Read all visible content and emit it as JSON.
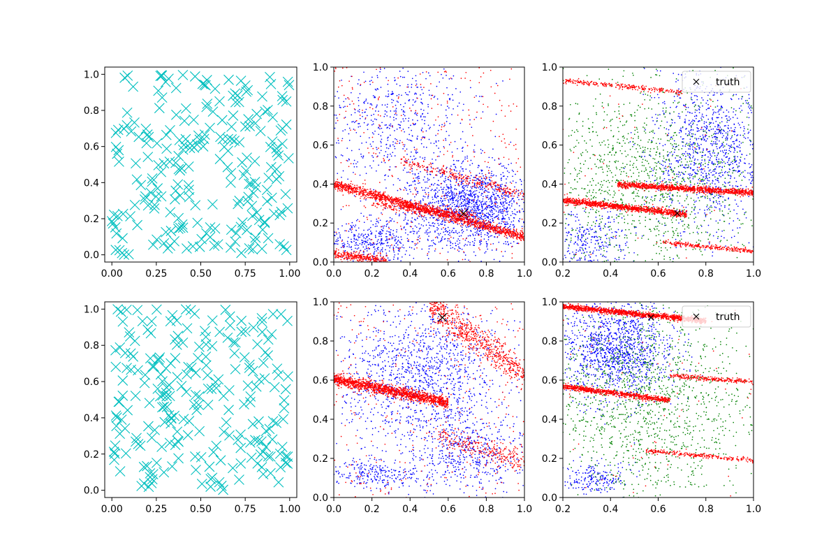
{
  "chart_data": [
    {
      "panel": "top-left",
      "type": "scatter",
      "xlim": [
        -0.04,
        1.04
      ],
      "ylim": [
        -0.04,
        1.04
      ],
      "xticks": [
        "0.00",
        "0.25",
        "0.50",
        "0.75",
        "1.00"
      ],
      "yticks": [
        "0.0",
        "0.2",
        "0.4",
        "0.6",
        "0.8",
        "1.0"
      ],
      "series": [
        {
          "marker": "x",
          "color": "#00bfbf",
          "count": 240,
          "distribution": "uniform in [0,1]x[0,1] with a gap near (0.55, 0.40)",
          "seed": 11
        }
      ]
    },
    {
      "panel": "top-middle",
      "type": "scatter",
      "xlim": [
        0,
        1
      ],
      "ylim": [
        0,
        1
      ],
      "xticks": [
        "0.0",
        "0.2",
        "0.4",
        "0.6",
        "0.8",
        "1.0"
      ],
      "yticks": [
        "0.0",
        "0.2",
        "0.4",
        "0.6",
        "0.8",
        "1.0"
      ],
      "series": [
        {
          "marker": "dot",
          "color": "#0000ff",
          "seed": 21,
          "clusters": [
            {
              "cx": 0.72,
              "cy": 0.28,
              "sx": 0.17,
              "sy": 0.11,
              "count": 1600
            },
            {
              "cx": 0.32,
              "cy": 0.72,
              "sx": 0.2,
              "sy": 0.18,
              "count": 600
            },
            {
              "cx": 0.2,
              "cy": 0.1,
              "sx": 0.14,
              "sy": 0.06,
              "count": 400
            }
          ]
        },
        {
          "marker": "dot",
          "color": "#ff0000",
          "seed": 22,
          "bands": [
            {
              "x0": 0.0,
              "x1": 1.0,
              "y_at_0": 0.4,
              "slope": -0.27,
              "spread": 0.012,
              "count": 1500,
              "x_from": 0.38
            },
            {
              "x0": 0.2,
              "x1": 0.75,
              "y_at_0": 0.32,
              "slope": -0.11,
              "spread": 0.012,
              "count": 300
            },
            {
              "x0": 0.35,
              "x1": 1.0,
              "y_at_0": 0.62,
              "slope": -0.28,
              "spread": 0.014,
              "count": 260
            },
            {
              "x0": 0.0,
              "x1": 0.28,
              "y_at_0": 0.04,
              "slope": -0.12,
              "spread": 0.012,
              "count": 300
            }
          ],
          "background": 350
        }
      ],
      "truth": {
        "x": 0.68,
        "y": 0.25
      }
    },
    {
      "panel": "top-right",
      "type": "scatter",
      "xlim": [
        0.2,
        1
      ],
      "ylim": [
        0,
        1
      ],
      "xticks": [
        "0.2",
        "0.4",
        "0.6",
        "0.8",
        "1.0"
      ],
      "yticks": [
        "0.0",
        "0.2",
        "0.4",
        "0.6",
        "0.8",
        "1.0"
      ],
      "series": [
        {
          "marker": "dot",
          "color": "#0000ff",
          "seed": 31,
          "clusters": [
            {
              "cx": 0.82,
              "cy": 0.58,
              "sx": 0.12,
              "sy": 0.2,
              "count": 1100
            },
            {
              "cx": 0.3,
              "cy": 0.1,
              "sx": 0.08,
              "sy": 0.08,
              "count": 300
            }
          ]
        },
        {
          "marker": "dot",
          "color": "#008000",
          "seed": 32,
          "clusters": [
            {
              "cx": 0.55,
              "cy": 0.42,
              "sx": 0.25,
              "sy": 0.27,
              "count": 1400
            }
          ]
        },
        {
          "marker": "dot",
          "color": "#ff0000",
          "seed": 33,
          "bands": [
            {
              "x0": 0.2,
              "x1": 0.72,
              "y_at_0": 0.345,
              "slope": -0.14,
              "spread": 0.008,
              "count": 1100
            },
            {
              "x0": 0.43,
              "x1": 1.0,
              "y_at_0": 0.43,
              "slope": -0.075,
              "spread": 0.008,
              "count": 1100
            },
            {
              "x0": 0.2,
              "x1": 0.7,
              "y_at_0": 0.955,
              "slope": -0.12,
              "spread": 0.006,
              "count": 250
            },
            {
              "x0": 0.62,
              "x1": 1.0,
              "y_at_0": 0.175,
              "slope": -0.12,
              "spread": 0.006,
              "count": 250
            }
          ],
          "background": 60
        }
      ],
      "truth": {
        "x": 0.68,
        "y": 0.25
      },
      "legend": {
        "label": "truth",
        "placement": "upper right"
      }
    },
    {
      "panel": "bottom-left",
      "type": "scatter",
      "xlim": [
        -0.04,
        1.04
      ],
      "ylim": [
        -0.04,
        1.04
      ],
      "xticks": [
        "0.00",
        "0.25",
        "0.50",
        "0.75",
        "1.00"
      ],
      "yticks": [
        "0.0",
        "0.2",
        "0.4",
        "0.6",
        "0.8",
        "1.0"
      ],
      "series": [
        {
          "marker": "x",
          "color": "#00bfbf",
          "count": 240,
          "distribution": "uniform in [0,1]x[0,1]",
          "seed": 41
        }
      ]
    },
    {
      "panel": "bottom-middle",
      "type": "scatter",
      "xlim": [
        0,
        1
      ],
      "ylim": [
        0,
        1
      ],
      "xticks": [
        "0.0",
        "0.2",
        "0.4",
        "0.6",
        "0.8",
        "1.0"
      ],
      "yticks": [
        "0.0",
        "0.2",
        "0.4",
        "0.6",
        "0.8",
        "1.0"
      ],
      "series": [
        {
          "marker": "dot",
          "color": "#0000ff",
          "seed": 51,
          "clusters": [
            {
              "cx": 0.45,
              "cy": 0.62,
              "sx": 0.22,
              "sy": 0.18,
              "count": 1300
            },
            {
              "cx": 0.7,
              "cy": 0.22,
              "sx": 0.15,
              "sy": 0.1,
              "count": 500
            },
            {
              "cx": 0.2,
              "cy": 0.12,
              "sx": 0.12,
              "sy": 0.04,
              "count": 250
            }
          ]
        },
        {
          "marker": "dot",
          "color": "#ff0000",
          "seed": 52,
          "bands": [
            {
              "x0": 0.0,
              "x1": 0.6,
              "y_at_0": 0.605,
              "slope": -0.2,
              "spread": 0.014,
              "count": 1500
            },
            {
              "x0": 0.5,
              "x1": 1.0,
              "y_at_0": 1.35,
              "slope": -0.72,
              "spread": 0.04,
              "count": 700
            },
            {
              "x0": 0.55,
              "x1": 1.0,
              "y_at_0": 0.48,
              "slope": -0.3,
              "spread": 0.03,
              "count": 250
            }
          ],
          "background": 300
        }
      ],
      "truth": {
        "x": 0.57,
        "y": 0.92
      }
    },
    {
      "panel": "bottom-right",
      "type": "scatter",
      "xlim": [
        0.2,
        1
      ],
      "ylim": [
        0,
        1
      ],
      "xticks": [
        "0.2",
        "0.4",
        "0.6",
        "0.8",
        "1.0"
      ],
      "yticks": [
        "0.0",
        "0.2",
        "0.4",
        "0.6",
        "0.8",
        "1.0"
      ],
      "series": [
        {
          "marker": "dot",
          "color": "#0000ff",
          "seed": 61,
          "clusters": [
            {
              "cx": 0.42,
              "cy": 0.76,
              "sx": 0.12,
              "sy": 0.13,
              "count": 1300
            },
            {
              "cx": 0.33,
              "cy": 0.1,
              "sx": 0.07,
              "sy": 0.04,
              "count": 200
            }
          ]
        },
        {
          "marker": "dot",
          "color": "#008000",
          "seed": 62,
          "clusters": [
            {
              "cx": 0.55,
              "cy": 0.5,
              "sx": 0.22,
              "sy": 0.27,
              "count": 1500
            }
          ]
        },
        {
          "marker": "dot",
          "color": "#ff0000",
          "seed": 63,
          "bands": [
            {
              "x0": 0.2,
              "x1": 0.8,
              "y_at_0": 1.0,
              "slope": -0.12,
              "spread": 0.007,
              "count": 1300
            },
            {
              "x0": 0.2,
              "x1": 0.65,
              "y_at_0": 0.6,
              "slope": -0.16,
              "spread": 0.007,
              "count": 800
            },
            {
              "x0": 0.65,
              "x1": 1.0,
              "y_at_0": 0.68,
              "slope": -0.09,
              "spread": 0.006,
              "count": 250
            },
            {
              "x0": 0.55,
              "x1": 1.0,
              "y_at_0": 0.3,
              "slope": -0.11,
              "spread": 0.006,
              "count": 250
            }
          ],
          "background": 60
        }
      ],
      "truth": {
        "x": 0.57,
        "y": 0.92
      },
      "legend": {
        "label": "truth",
        "placement": "upper right"
      }
    }
  ]
}
